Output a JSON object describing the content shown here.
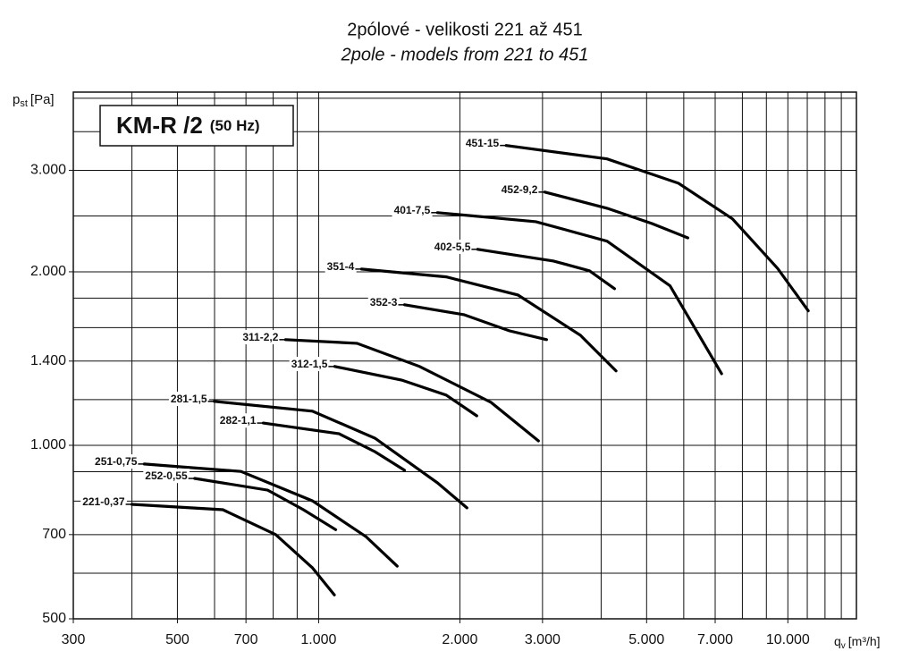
{
  "chart_data": {
    "type": "line",
    "title": "2pólové - velikosti 221 až 451",
    "subtitle": "2pole - models from 221 to 451",
    "box_title": "KM-R /2",
    "box_note": "(50 Hz)",
    "ylabel": "p",
    "ylabel_sub": "st",
    "ylabel_unit": "[Pa]",
    "xlabel": "q",
    "xlabel_sub": "v",
    "xlabel_unit": "[m³/h]",
    "log_x": true,
    "log_y": true,
    "grid": true,
    "xlim": [
      300,
      14000
    ],
    "ylim": [
      500,
      4100
    ],
    "xticks": [
      300,
      500,
      700,
      {
        "value": 1000,
        "label": "1.000"
      },
      {
        "value": 2000,
        "label": "2.000"
      },
      {
        "value": 3000,
        "label": "3.000"
      },
      {
        "value": 5000,
        "label": "5.000"
      },
      {
        "value": 7000,
        "label": "7.000"
      },
      {
        "value": 10000,
        "label": "10.000"
      }
    ],
    "yticks": [
      500,
      700,
      {
        "value": 1000,
        "label": "1.000"
      },
      {
        "value": 1400,
        "label": "1.400"
      },
      {
        "value": 2000,
        "label": "2.000"
      },
      {
        "value": 3000,
        "label": "3.000"
      }
    ],
    "xgrid": [
      300,
      400,
      500,
      600,
      700,
      800,
      900,
      1000,
      2000,
      3000,
      4000,
      5000,
      6000,
      7000,
      8000,
      9000,
      10000,
      11000,
      12000,
      13000
    ],
    "ygrid": [
      500,
      600,
      700,
      800,
      900,
      1000,
      1200,
      1400,
      1600,
      1800,
      2000,
      2500,
      3000,
      3500,
      4000
    ],
    "series": [
      {
        "name": "221-0,37",
        "color": "#000000",
        "x": [
          400,
          625,
          810,
          970,
          1080
        ],
        "values": [
          790,
          773,
          700,
          613,
          550
        ]
      },
      {
        "name": "251-0,75",
        "color": "#000000",
        "x": [
          425,
          683,
          970,
          1262,
          1470
        ],
        "values": [
          928,
          901,
          801,
          694,
          617
        ]
      },
      {
        "name": "252-0,55",
        "color": "#000000",
        "x": [
          544,
          779,
          928,
          1087
        ],
        "values": [
          876,
          836,
          773,
          714
        ]
      },
      {
        "name": "281-1,5",
        "color": "#000000",
        "x": [
          599,
          970,
          1318,
          1791,
          2070
        ],
        "values": [
          1192,
          1146,
          1029,
          861,
          779
        ]
      },
      {
        "name": "282-1,1",
        "color": "#000000",
        "x": [
          762,
          1106,
          1318,
          1524
        ],
        "values": [
          1093,
          1047,
          975,
          905
        ]
      },
      {
        "name": "311-2,2",
        "color": "#000000",
        "x": [
          850,
          1207,
          1641,
          2330,
          2940
        ],
        "values": [
          1525,
          1503,
          1370,
          1187,
          1018
        ]
      },
      {
        "name": "312-1,5",
        "color": "#000000",
        "x": [
          1082,
          1503,
          1870,
          2173
        ],
        "values": [
          1370,
          1298,
          1222,
          1125
        ]
      },
      {
        "name": "351-4",
        "color": "#000000",
        "x": [
          1234,
          1870,
          2660,
          3612,
          4304
        ],
        "values": [
          2022,
          1960,
          1823,
          1552,
          1346
        ]
      },
      {
        "name": "352-3",
        "color": "#000000",
        "x": [
          1524,
          2040,
          2548,
          3060
        ],
        "values": [
          1753,
          1685,
          1580,
          1525
        ]
      },
      {
        "name": "401-7,5",
        "color": "#000000",
        "x": [
          1791,
          2905,
          4118,
          5608,
          7226
        ],
        "values": [
          2533,
          2443,
          2260,
          1891,
          1331
        ]
      },
      {
        "name": "402-5,5",
        "color": "#000000",
        "x": [
          2183,
          3167,
          3777,
          4271
        ],
        "values": [
          2188,
          2088,
          2008,
          1870
        ]
      },
      {
        "name": "451-15",
        "color": "#000000",
        "x": [
          2510,
          4118,
          5844,
          7618,
          9513,
          11051
        ],
        "values": [
          3313,
          3140,
          2849,
          2471,
          2027,
          1711
        ]
      },
      {
        "name": "452-9,2",
        "color": "#000000",
        "x": [
          3034,
          4118,
          5134,
          6120
        ],
        "values": [
          2750,
          2578,
          2425,
          2290
        ]
      }
    ]
  }
}
